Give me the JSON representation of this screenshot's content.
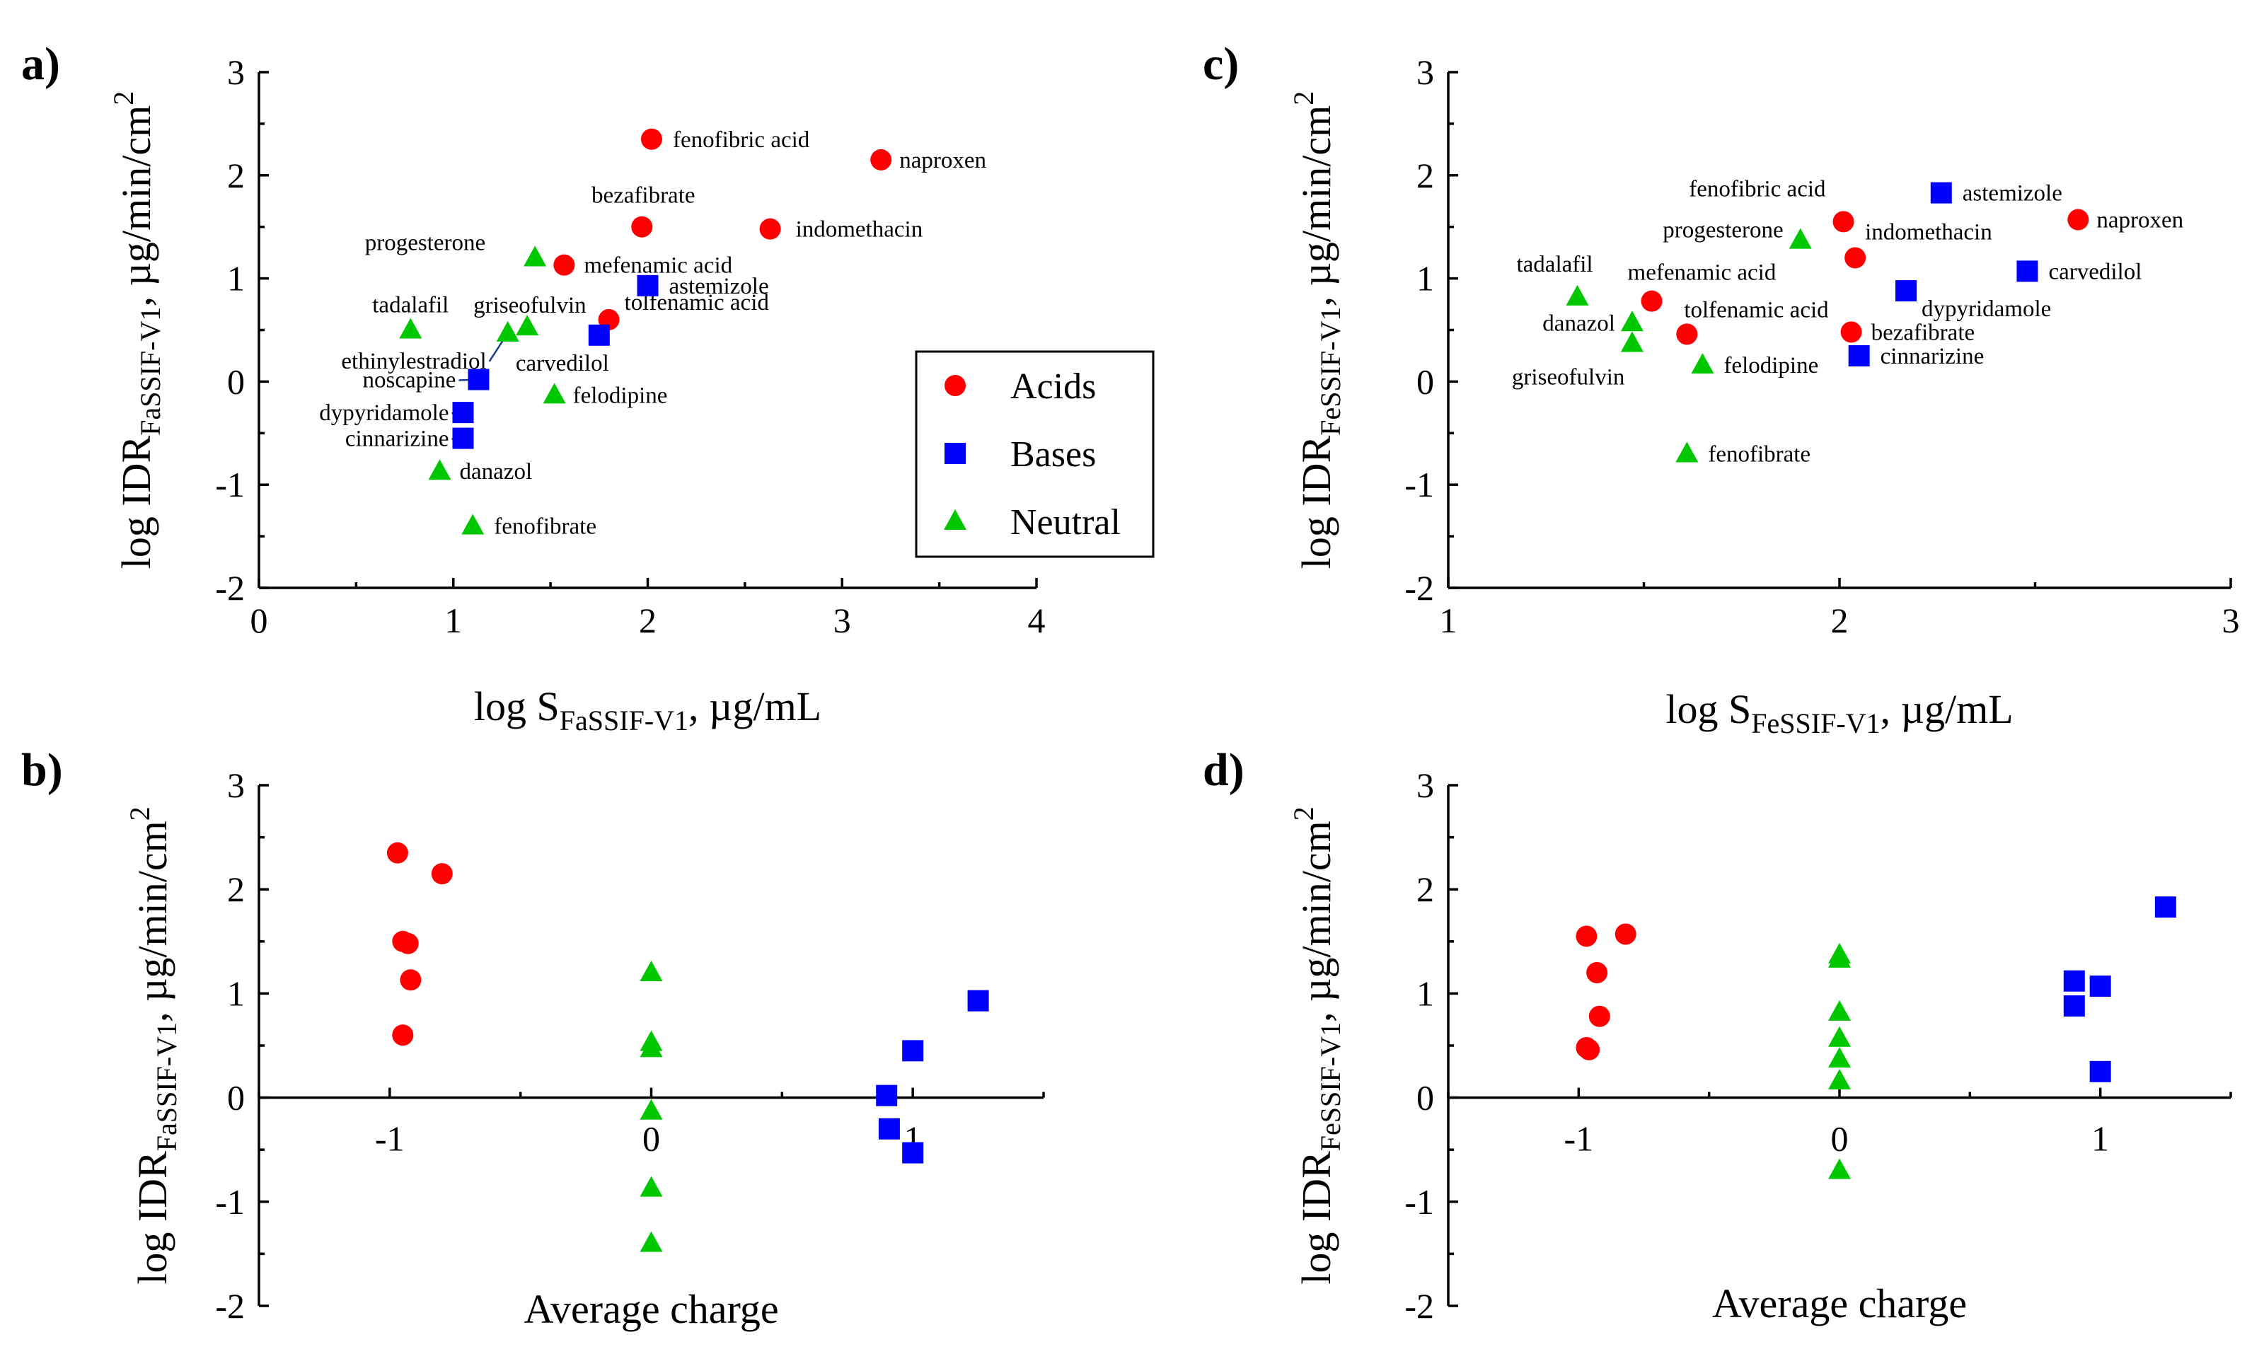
{
  "colors": {
    "acid": "#ff0000",
    "base": "#0000ff",
    "neutral": "#00c800"
  },
  "legend": [
    {
      "class": "acid",
      "label": "Acids"
    },
    {
      "class": "base",
      "label": "Bases"
    },
    {
      "class": "neutral",
      "label": "Neutral"
    }
  ],
  "chart_data": [
    {
      "id": "a",
      "panel_label": "a)",
      "type": "scatter",
      "xlabel": {
        "main": "log S",
        "sub": "FaSSIF-V1",
        "unit": ", µg/mL"
      },
      "ylabel": {
        "main": "log IDR",
        "sub": "FaSSIF-V1",
        "unit": ", µg/min/cm",
        "sup": "2"
      },
      "xlim": [
        0,
        4
      ],
      "ylim": [
        -2,
        3
      ],
      "xticks": [
        0,
        1,
        2,
        3,
        4
      ],
      "yticks": [
        -2,
        -1,
        0,
        1,
        2,
        3
      ],
      "show_legend": true,
      "points": [
        {
          "name": "fenofibric acid",
          "class": "acid",
          "x": 2.02,
          "y": 2.35
        },
        {
          "name": "naproxen",
          "class": "acid",
          "x": 3.2,
          "y": 2.15
        },
        {
          "name": "bezafibrate",
          "class": "acid",
          "x": 1.97,
          "y": 1.5
        },
        {
          "name": "indomethacin",
          "class": "acid",
          "x": 2.63,
          "y": 1.48
        },
        {
          "name": "mefenamic acid",
          "class": "acid",
          "x": 1.57,
          "y": 1.13
        },
        {
          "name": "tolfenamic acid",
          "class": "acid",
          "x": 1.8,
          "y": 0.6
        },
        {
          "name": "astemizole",
          "class": "base",
          "x": 2.0,
          "y": 0.93
        },
        {
          "name": "carvedilol",
          "class": "base",
          "x": 1.75,
          "y": 0.45
        },
        {
          "name": "noscapine",
          "class": "base",
          "x": 1.13,
          "y": 0.02
        },
        {
          "name": "dypyridamole",
          "class": "base",
          "x": 1.05,
          "y": -0.3
        },
        {
          "name": "cinnarizine",
          "class": "base",
          "x": 1.05,
          "y": -0.55
        },
        {
          "name": "progesterone",
          "class": "neutral",
          "x": 1.42,
          "y": 1.2
        },
        {
          "name": "tadalafil",
          "class": "neutral",
          "x": 0.78,
          "y": 0.5
        },
        {
          "name": "griseofulvin",
          "class": "neutral",
          "x": 1.38,
          "y": 0.53
        },
        {
          "name": "ethinylestradiol",
          "class": "neutral",
          "x": 1.28,
          "y": 0.47
        },
        {
          "name": "felodipine",
          "class": "neutral",
          "x": 1.52,
          "y": -0.13
        },
        {
          "name": "danazol",
          "class": "neutral",
          "x": 0.93,
          "y": -0.87
        },
        {
          "name": "fenofibrate",
          "class": "neutral",
          "x": 1.1,
          "y": -1.4
        }
      ]
    },
    {
      "id": "b",
      "panel_label": "b)",
      "type": "scatter",
      "xlabel": {
        "main": "Average charge"
      },
      "ylabel": {
        "main": "log IDR",
        "sub": "FaSSIF-V1",
        "unit": ", µg/min/cm",
        "sup": "2"
      },
      "xlim": [
        -1.5,
        1.5
      ],
      "ylim": [
        -2,
        3
      ],
      "xticks": [
        -1,
        0,
        1
      ],
      "yticks": [
        -2,
        -1,
        0,
        1,
        2,
        3
      ],
      "xaxis_at_zero": true,
      "points": [
        {
          "class": "acid",
          "x": -0.97,
          "y": 2.35
        },
        {
          "class": "acid",
          "x": -0.8,
          "y": 2.15
        },
        {
          "class": "acid",
          "x": -0.95,
          "y": 1.5
        },
        {
          "class": "acid",
          "x": -0.93,
          "y": 1.48
        },
        {
          "class": "acid",
          "x": -0.92,
          "y": 1.13
        },
        {
          "class": "acid",
          "x": -0.95,
          "y": 0.6
        },
        {
          "class": "neutral",
          "x": 0,
          "y": 1.2
        },
        {
          "class": "neutral",
          "x": 0,
          "y": 0.53
        },
        {
          "class": "neutral",
          "x": 0,
          "y": 0.47
        },
        {
          "class": "neutral",
          "x": 0,
          "y": -0.13
        },
        {
          "class": "neutral",
          "x": 0,
          "y": -0.87
        },
        {
          "class": "neutral",
          "x": 0,
          "y": -1.4
        },
        {
          "class": "base",
          "x": 1.25,
          "y": 0.93
        },
        {
          "class": "base",
          "x": 1.0,
          "y": 0.45
        },
        {
          "class": "base",
          "x": 0.9,
          "y": 0.02
        },
        {
          "class": "base",
          "x": 0.91,
          "y": -0.3
        },
        {
          "class": "base",
          "x": 1.0,
          "y": -0.53
        }
      ]
    },
    {
      "id": "c",
      "panel_label": "c)",
      "type": "scatter",
      "xlabel": {
        "main": "log S",
        "sub": "FeSSIF-V1",
        "unit": ", µg/mL"
      },
      "ylabel": {
        "main": "log IDR",
        "sub": "FeSSIF-V1",
        "unit": ", µg/min/cm",
        "sup": "2"
      },
      "xlim": [
        1,
        3
      ],
      "ylim": [
        -2,
        3
      ],
      "xticks": [
        1,
        2,
        3
      ],
      "yticks": [
        -2,
        -1,
        0,
        1,
        2,
        3
      ],
      "points": [
        {
          "name": "fenofibric acid",
          "class": "acid",
          "x": 2.01,
          "y": 1.55
        },
        {
          "name": "naproxen",
          "class": "acid",
          "x": 2.61,
          "y": 1.57
        },
        {
          "name": "indomethacin",
          "class": "acid",
          "x": 2.04,
          "y": 1.2
        },
        {
          "name": "mefenamic acid",
          "class": "acid",
          "x": 1.52,
          "y": 0.78
        },
        {
          "name": "tolfenamic acid",
          "class": "acid",
          "x": 1.61,
          "y": 0.46
        },
        {
          "name": "bezafibrate",
          "class": "acid",
          "x": 2.03,
          "y": 0.48
        },
        {
          "name": "astemizole",
          "class": "base",
          "x": 2.26,
          "y": 1.83
        },
        {
          "name": "carvedilol",
          "class": "base",
          "x": 2.48,
          "y": 1.07
        },
        {
          "name": "dypyridamole",
          "class": "base",
          "x": 2.17,
          "y": 0.88
        },
        {
          "name": "cinnarizine",
          "class": "base",
          "x": 2.05,
          "y": 0.25
        },
        {
          "name": "progesterone",
          "class": "neutral",
          "x": 1.9,
          "y": 1.37
        },
        {
          "name": "tadalafil",
          "class": "neutral",
          "x": 1.33,
          "y": 0.82
        },
        {
          "name": "danazol",
          "class": "neutral",
          "x": 1.47,
          "y": 0.57
        },
        {
          "name": "griseofulvin",
          "class": "neutral",
          "x": 1.47,
          "y": 0.37
        },
        {
          "name": "felodipine",
          "class": "neutral",
          "x": 1.65,
          "y": 0.16
        },
        {
          "name": "fenofibrate",
          "class": "neutral",
          "x": 1.61,
          "y": -0.7
        }
      ]
    },
    {
      "id": "d",
      "panel_label": "d)",
      "type": "scatter",
      "xlabel": {
        "main": "Average charge"
      },
      "ylabel": {
        "main": "log IDR",
        "sub": "FeSSIF-V1",
        "unit": ", µg/min/cm",
        "sup": "2"
      },
      "xlim": [
        -1.5,
        1.5
      ],
      "ylim": [
        -2,
        3
      ],
      "xticks": [
        -1,
        0,
        1
      ],
      "yticks": [
        -2,
        -1,
        0,
        1,
        2,
        3
      ],
      "xaxis_at_zero": true,
      "points": [
        {
          "class": "acid",
          "x": -0.97,
          "y": 1.55
        },
        {
          "class": "acid",
          "x": -0.82,
          "y": 1.57
        },
        {
          "class": "acid",
          "x": -0.93,
          "y": 1.2
        },
        {
          "class": "acid",
          "x": -0.92,
          "y": 0.78
        },
        {
          "class": "acid",
          "x": -0.97,
          "y": 0.48
        },
        {
          "class": "acid",
          "x": -0.96,
          "y": 0.46
        },
        {
          "class": "neutral",
          "x": 0,
          "y": 1.37
        },
        {
          "class": "neutral",
          "x": 0,
          "y": 1.33
        },
        {
          "class": "neutral",
          "x": 0,
          "y": 0.82
        },
        {
          "class": "neutral",
          "x": 0,
          "y": 0.57
        },
        {
          "class": "neutral",
          "x": 0,
          "y": 0.37
        },
        {
          "class": "neutral",
          "x": 0,
          "y": 0.16
        },
        {
          "class": "neutral",
          "x": 0,
          "y": -0.7
        },
        {
          "class": "base",
          "x": 1.25,
          "y": 1.83
        },
        {
          "class": "base",
          "x": 0.9,
          "y": 1.12
        },
        {
          "class": "base",
          "x": 1.0,
          "y": 1.07
        },
        {
          "class": "base",
          "x": 0.9,
          "y": 0.88
        },
        {
          "class": "base",
          "x": 1.0,
          "y": 0.25
        }
      ]
    }
  ]
}
